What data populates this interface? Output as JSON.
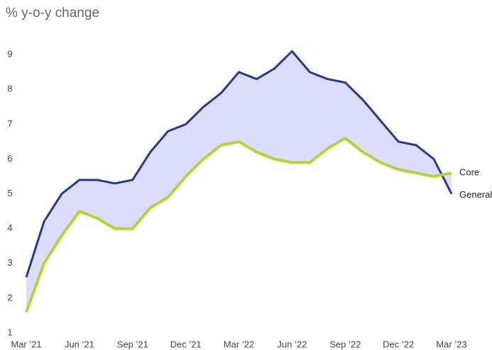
{
  "chart_data": {
    "type": "line",
    "title": "% y-o-y change",
    "categories": [
      "Mar ’21",
      null,
      null,
      "Jun ’21",
      null,
      null,
      "Sep ’21",
      null,
      null,
      "Dec ’21",
      null,
      null,
      "Mar ’22",
      null,
      null,
      "Jun ’22",
      null,
      null,
      "Sep ’22",
      null,
      null,
      "Dec ’22",
      null,
      null,
      "Mar ’23"
    ],
    "series": [
      {
        "name": "General",
        "color": "#253a8c",
        "values": [
          2.6,
          4.2,
          5.0,
          5.4,
          5.4,
          5.3,
          5.4,
          6.2,
          6.8,
          7.0,
          7.5,
          7.9,
          8.5,
          8.3,
          8.6,
          9.1,
          8.5,
          8.3,
          8.2,
          7.7,
          7.1,
          6.5,
          6.4,
          6.0,
          5.0
        ]
      },
      {
        "name": "Core",
        "color": "#b5d334",
        "values": [
          1.6,
          3.0,
          3.8,
          4.5,
          4.3,
          4.0,
          4.0,
          4.6,
          4.9,
          5.5,
          6.0,
          6.4,
          6.5,
          6.2,
          6.0,
          5.9,
          5.9,
          6.3,
          6.6,
          6.2,
          5.9,
          5.7,
          5.6,
          5.5,
          5.6
        ]
      }
    ],
    "fill_between_color": "#dcdcfb",
    "ylim": [
      1,
      9.5
    ],
    "yticks": [
      1,
      2,
      3,
      4,
      5,
      6,
      7,
      8,
      9
    ],
    "grid": false
  }
}
